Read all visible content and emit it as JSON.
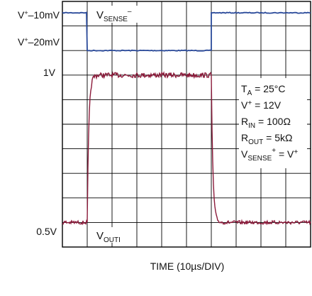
{
  "chart_data": {
    "type": "line",
    "title": "",
    "xlabel": "TIME (10µs/DIV)",
    "ylabel": "",
    "x_divisions": 10,
    "y_divisions": 10,
    "grid": true,
    "left_labels": [
      {
        "base": "V",
        "sup": "+",
        "rest": "–10mV"
      },
      {
        "base": "V",
        "sup": "+",
        "rest": "–20mV"
      },
      {
        "base": "1V",
        "sup": "",
        "rest": ""
      },
      {
        "base": "0.5V",
        "sup": "",
        "rest": ""
      }
    ],
    "series": [
      {
        "color": "#2a4a9a",
        "levels": {
          "high": "V+–10mV",
          "low": "V+–20mV"
        },
        "label": {
          "base": "V",
          "sub": "SENSE",
          "sup": "–"
        },
        "step_down_div": 1,
        "step_up_div": 6
      },
      {
        "color": "#8b1a3a",
        "levels": {
          "high": "1V",
          "low": "0.5V"
        },
        "label": {
          "base": "V",
          "sub": "OUTI"
        },
        "step_up_div": 1,
        "step_down_div": 6
      }
    ],
    "conditions": [
      {
        "base": "T",
        "sub": "A",
        "rest": " = 25°C",
        "sup": ""
      },
      {
        "base": "V",
        "sup": "+",
        "rest": " = 12V",
        "sub": ""
      },
      {
        "base": "R",
        "sub": "IN",
        "rest": " = 100Ω",
        "sup": ""
      },
      {
        "base": "R",
        "sub": "OUT",
        "rest": " = 5kΩ",
        "sup": ""
      },
      {
        "base": "V",
        "sub": "SENSE",
        "sup": "+",
        "rest": " = V",
        "sup2": "+"
      }
    ]
  }
}
